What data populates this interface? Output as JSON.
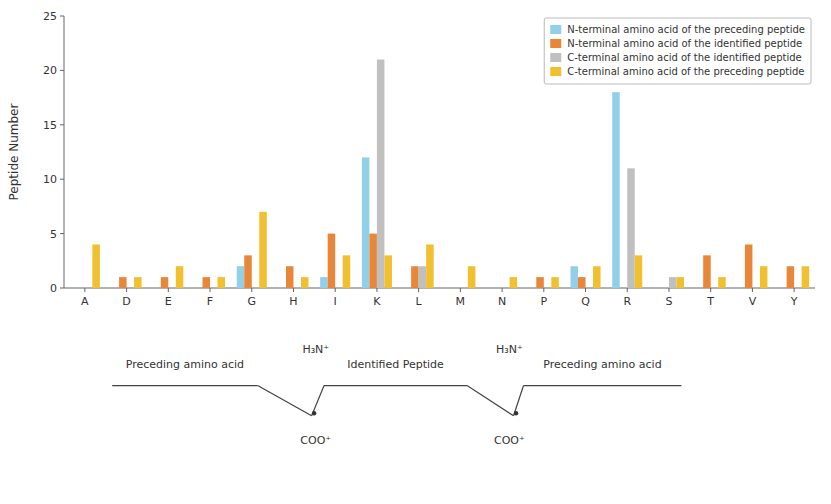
{
  "chart_data": {
    "type": "bar",
    "categories": [
      "A",
      "D",
      "E",
      "F",
      "G",
      "H",
      "I",
      "K",
      "L",
      "M",
      "N",
      "P",
      "Q",
      "R",
      "S",
      "T",
      "V",
      "Y"
    ],
    "series": [
      {
        "name": "N-terminal amino acid of the preceding peptide",
        "color": "#92cfe8",
        "values": [
          0,
          0,
          0,
          0,
          2,
          0,
          1,
          12,
          0,
          0,
          0,
          0,
          2,
          18,
          0,
          0,
          0,
          0
        ]
      },
      {
        "name": "N-terminal amino acid of the identified peptide",
        "color": "#e8873a",
        "values": [
          0,
          1,
          1,
          1,
          3,
          2,
          5,
          5,
          2,
          0,
          0,
          1,
          1,
          0,
          0,
          3,
          4,
          2
        ]
      },
      {
        "name": "C-terminal amino acid of the identified peptide",
        "color": "#c0c0c0",
        "values": [
          0,
          0,
          0,
          0,
          0,
          0,
          0,
          21,
          2,
          0,
          0,
          0,
          0,
          11,
          1,
          0,
          0,
          0
        ]
      },
      {
        "name": "C-terminal amino acid of the preceding peptide",
        "color": "#f0c030",
        "values": [
          4,
          1,
          2,
          1,
          7,
          1,
          3,
          3,
          4,
          2,
          1,
          1,
          2,
          3,
          1,
          1,
          2,
          2
        ]
      }
    ],
    "y_label": "Peptide Number",
    "ylim": [
      0,
      25
    ],
    "yticks": [
      0,
      5,
      10,
      15,
      20,
      25
    ],
    "grid": false,
    "legend": "upper right",
    "annotations": [
      "Preceding amino acid",
      "Identified Peptide",
      "Preceding amino acid",
      "H₃N⁺",
      "H₃N⁺",
      "COO⁺",
      "COO⁺"
    ]
  }
}
